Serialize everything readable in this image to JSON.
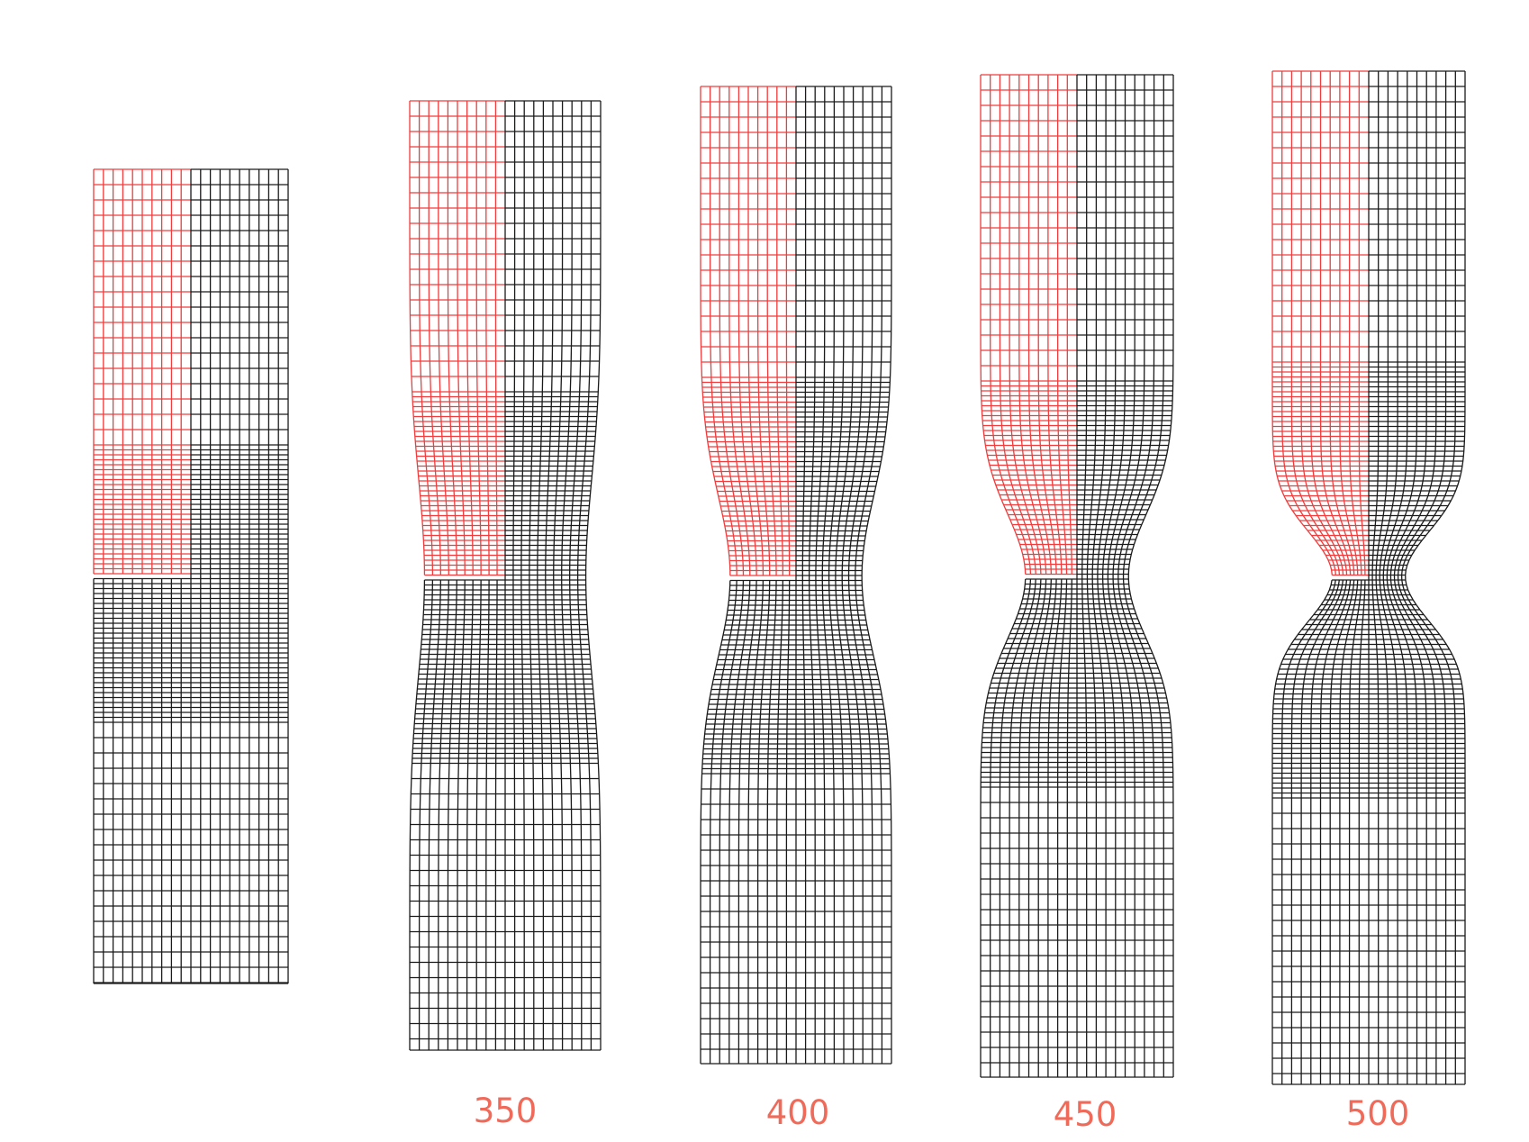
{
  "figure": {
    "description_free": true,
    "colors": {
      "highlight": "#f03c3c",
      "mesh": "#1a1a1a",
      "label": "#f06a5a"
    },
    "specimens": [
      {
        "id": "initial",
        "label": "",
        "necking": 0.0
      },
      {
        "id": "step-350",
        "label": "350",
        "necking": 0.25
      },
      {
        "id": "step-400",
        "label": "400",
        "necking": 0.5
      },
      {
        "id": "step-450",
        "label": "450",
        "necking": 0.75
      },
      {
        "id": "step-500",
        "label": "500",
        "necking": 1.0
      }
    ]
  }
}
